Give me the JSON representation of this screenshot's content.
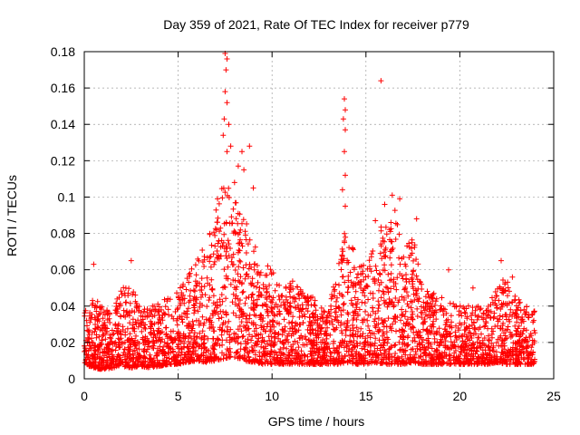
{
  "chart_data": {
    "type": "scatter",
    "title": "Day 359 of 2021, Rate Of TEC Index for receiver p779",
    "xlabel": "GPS time / hours",
    "ylabel": "ROTI / TECUs",
    "xlim": [
      0,
      25
    ],
    "ylim": [
      0,
      0.18
    ],
    "x_ticks": [
      "0",
      "5",
      "10",
      "15",
      "20",
      "25"
    ],
    "y_ticks": [
      "0",
      "0.02",
      "0.04",
      "0.06",
      "0.08",
      "0.1",
      "0.12",
      "0.14",
      "0.16",
      "0.18"
    ],
    "x_tick_values": [
      0,
      5,
      10,
      15,
      20,
      25
    ],
    "y_tick_values": [
      0,
      0.02,
      0.04,
      0.06,
      0.08,
      0.1,
      0.12,
      0.14,
      0.16,
      0.18
    ],
    "grid": true,
    "marker": "+",
    "color": "#ff0000",
    "x_range_data": [
      0,
      24
    ],
    "envelope": {
      "x": [
        0,
        0.5,
        1,
        1.5,
        2,
        2.5,
        3,
        3.5,
        4,
        4.5,
        5,
        5.5,
        6,
        6.5,
        7,
        7.5,
        8,
        8.5,
        9,
        9.5,
        10,
        10.5,
        11,
        11.5,
        12,
        12.5,
        13,
        13.5,
        14,
        14.5,
        15,
        15.5,
        16,
        16.5,
        17,
        17.5,
        18,
        18.5,
        19,
        19.5,
        20,
        20.5,
        21,
        21.5,
        22,
        22.5,
        23,
        23.5,
        24
      ],
      "low": [
        0.008,
        0.006,
        0.005,
        0.006,
        0.007,
        0.006,
        0.007,
        0.006,
        0.007,
        0.008,
        0.008,
        0.009,
        0.01,
        0.009,
        0.01,
        0.011,
        0.012,
        0.01,
        0.009,
        0.008,
        0.008,
        0.008,
        0.008,
        0.008,
        0.008,
        0.008,
        0.008,
        0.008,
        0.009,
        0.008,
        0.008,
        0.009,
        0.008,
        0.008,
        0.008,
        0.009,
        0.008,
        0.008,
        0.008,
        0.008,
        0.008,
        0.008,
        0.008,
        0.008,
        0.009,
        0.008,
        0.008,
        0.008,
        0.008
      ],
      "high": [
        0.038,
        0.045,
        0.04,
        0.038,
        0.05,
        0.055,
        0.038,
        0.04,
        0.042,
        0.045,
        0.048,
        0.06,
        0.07,
        0.075,
        0.095,
        0.11,
        0.1,
        0.09,
        0.075,
        0.065,
        0.06,
        0.05,
        0.055,
        0.05,
        0.045,
        0.045,
        0.04,
        0.06,
        0.09,
        0.07,
        0.06,
        0.075,
        0.09,
        0.095,
        0.07,
        0.08,
        0.05,
        0.048,
        0.045,
        0.042,
        0.04,
        0.042,
        0.04,
        0.042,
        0.055,
        0.055,
        0.045,
        0.04,
        0.038
      ]
    },
    "notable_points": [
      {
        "x": 0.5,
        "y": 0.063
      },
      {
        "x": 2.5,
        "y": 0.065
      },
      {
        "x": 7.1,
        "y": 0.099
      },
      {
        "x": 7.5,
        "y": 0.179
      },
      {
        "x": 7.6,
        "y": 0.176
      },
      {
        "x": 7.55,
        "y": 0.17
      },
      {
        "x": 7.5,
        "y": 0.158
      },
      {
        "x": 7.6,
        "y": 0.152
      },
      {
        "x": 7.45,
        "y": 0.143
      },
      {
        "x": 7.7,
        "y": 0.14
      },
      {
        "x": 7.4,
        "y": 0.134
      },
      {
        "x": 7.8,
        "y": 0.128
      },
      {
        "x": 7.6,
        "y": 0.125
      },
      {
        "x": 8.4,
        "y": 0.125
      },
      {
        "x": 8.2,
        "y": 0.117
      },
      {
        "x": 8.5,
        "y": 0.115
      },
      {
        "x": 8.8,
        "y": 0.128
      },
      {
        "x": 9.0,
        "y": 0.105
      },
      {
        "x": 8.0,
        "y": 0.108
      },
      {
        "x": 13.85,
        "y": 0.154
      },
      {
        "x": 13.9,
        "y": 0.148
      },
      {
        "x": 13.8,
        "y": 0.143
      },
      {
        "x": 13.9,
        "y": 0.137
      },
      {
        "x": 13.85,
        "y": 0.125
      },
      {
        "x": 13.9,
        "y": 0.112
      },
      {
        "x": 13.75,
        "y": 0.104
      },
      {
        "x": 13.9,
        "y": 0.095
      },
      {
        "x": 15.8,
        "y": 0.164
      },
      {
        "x": 16.4,
        "y": 0.101
      },
      {
        "x": 16.0,
        "y": 0.096
      },
      {
        "x": 16.8,
        "y": 0.099
      },
      {
        "x": 17.7,
        "y": 0.088
      },
      {
        "x": 15.5,
        "y": 0.087
      },
      {
        "x": 19.4,
        "y": 0.06
      },
      {
        "x": 20.7,
        "y": 0.05
      },
      {
        "x": 22.2,
        "y": 0.065
      },
      {
        "x": 22.8,
        "y": 0.056
      }
    ]
  }
}
